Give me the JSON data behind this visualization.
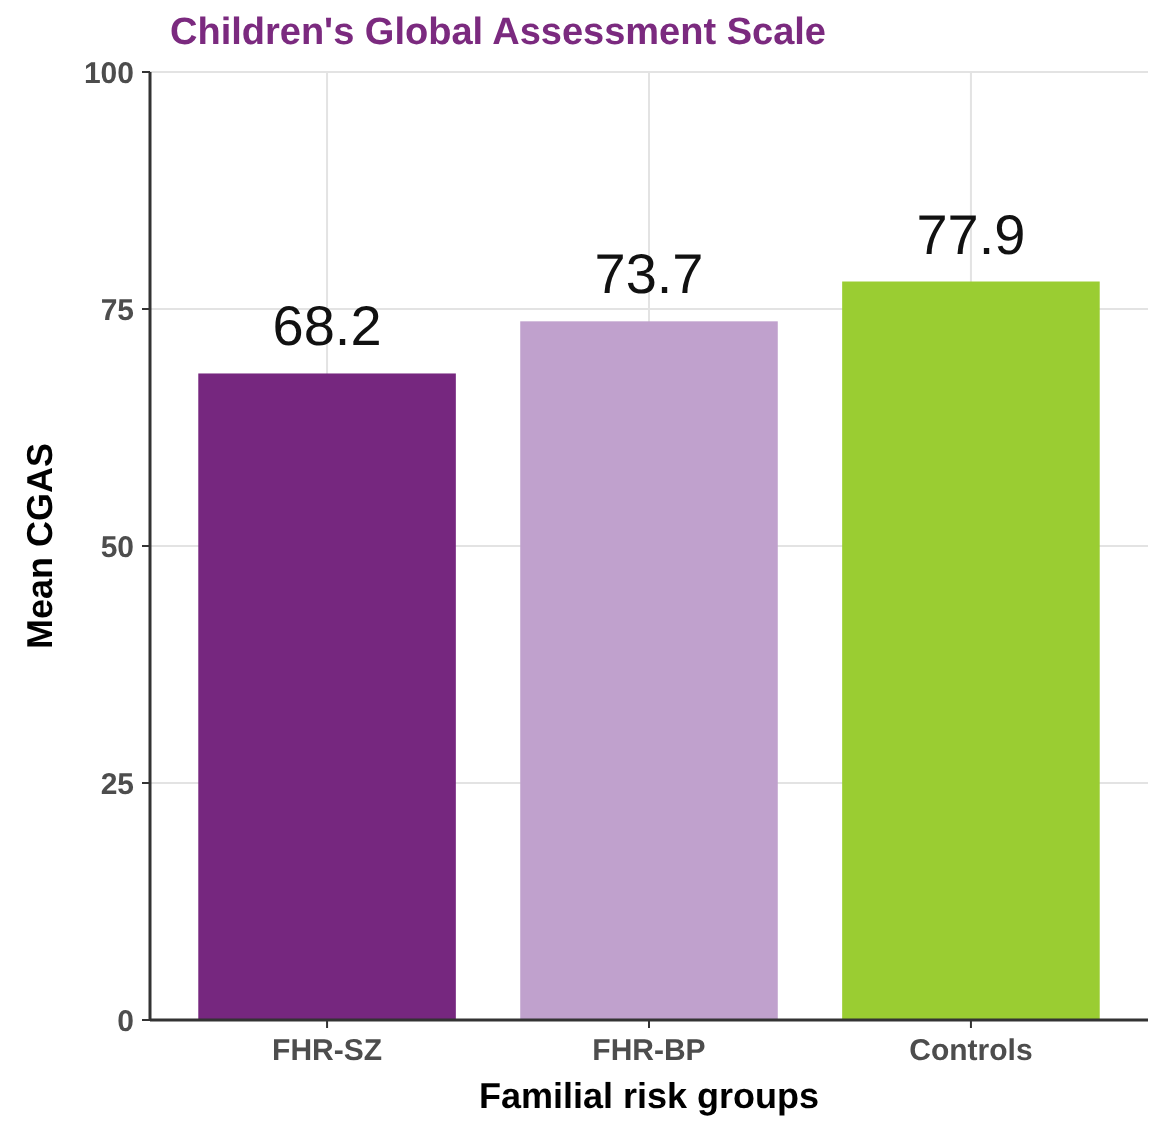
{
  "chart_data": {
    "type": "bar",
    "title": "Children's Global Assessment Scale",
    "xlabel": "Familial risk groups",
    "ylabel": "Mean CGAS",
    "categories": [
      "FHR-SZ",
      "FHR-BP",
      "Controls"
    ],
    "values": [
      68.2,
      73.7,
      77.9
    ],
    "colors": [
      "#76277f",
      "#c0a1cd",
      "#9acd32"
    ],
    "ylim": [
      0,
      100
    ],
    "yticks": [
      0,
      25,
      50,
      75,
      100
    ],
    "grid": true,
    "data_labels": true
  }
}
